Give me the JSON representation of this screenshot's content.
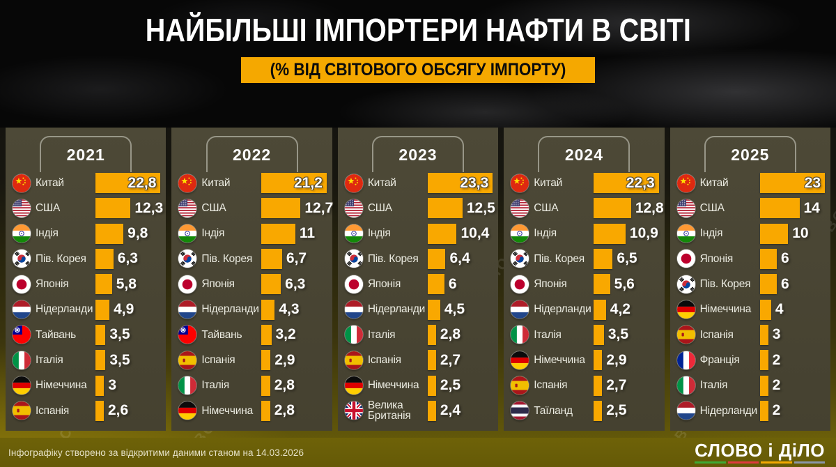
{
  "title": "НАЙБІЛЬШІ ІМПОРТЕРИ НАФТИ В СВІТІ",
  "subtitle": "(% ВІД СВІТОВОГО ОБСЯГУ ІМПОРТУ)",
  "watermark_text": "СЛОВО і ДіЛО",
  "footer": {
    "note": "Інфографіку створено за відкритими даними станом на 14.03.2026",
    "logo_text": "СЛОВО і ДіЛО",
    "logo_underline_colors": [
      "#3faa35",
      "#e03a3e",
      "#f2a900",
      "#8a97a8"
    ]
  },
  "colors": {
    "bar": "#F9A800",
    "badge_bg": "#F5A800",
    "panel_bg": "#4B4736"
  },
  "chart_data": {
    "type": "bar",
    "orientation": "horizontal",
    "title": "НАЙБІЛЬШІ ІМПОРТЕРИ НАФТИ В СВІТІ",
    "subtitle": "(% ВІД СВІТОВОГО ОБСЯГУ ІМПОРТУ)",
    "unit": "% від світового обсягу імпорту",
    "groups": [
      {
        "year": "2021",
        "rows": [
          {
            "country": "Китай",
            "flag": "cn",
            "value": 22.8,
            "label": "22,8"
          },
          {
            "country": "США",
            "flag": "us",
            "value": 12.3,
            "label": "12,3"
          },
          {
            "country": "Індія",
            "flag": "in",
            "value": 9.8,
            "label": "9,8"
          },
          {
            "country": "Пів. Корея",
            "flag": "kr",
            "value": 6.3,
            "label": "6,3"
          },
          {
            "country": "Японія",
            "flag": "jp",
            "value": 5.8,
            "label": "5,8"
          },
          {
            "country": "Нідерланди",
            "flag": "nl",
            "value": 4.9,
            "label": "4,9"
          },
          {
            "country": "Тайвань",
            "flag": "tw",
            "value": 3.5,
            "label": "3,5"
          },
          {
            "country": "Італія",
            "flag": "it",
            "value": 3.5,
            "label": "3,5"
          },
          {
            "country": "Німеччина",
            "flag": "de",
            "value": 3,
            "label": "3"
          },
          {
            "country": "Іспанія",
            "flag": "es",
            "value": 2.6,
            "label": "2,6"
          }
        ]
      },
      {
        "year": "2022",
        "rows": [
          {
            "country": "Китай",
            "flag": "cn",
            "value": 21.2,
            "label": "21,2"
          },
          {
            "country": "США",
            "flag": "us",
            "value": 12.7,
            "label": "12,7"
          },
          {
            "country": "Індія",
            "flag": "in",
            "value": 11,
            "label": "11"
          },
          {
            "country": "Пів. Корея",
            "flag": "kr",
            "value": 6.7,
            "label": "6,7"
          },
          {
            "country": "Японія",
            "flag": "jp",
            "value": 6.3,
            "label": "6,3"
          },
          {
            "country": "Нідерланди",
            "flag": "nl",
            "value": 4.3,
            "label": "4,3"
          },
          {
            "country": "Тайвань",
            "flag": "tw",
            "value": 3.2,
            "label": "3,2"
          },
          {
            "country": "Іспанія",
            "flag": "es",
            "value": 2.9,
            "label": "2,9"
          },
          {
            "country": "Італія",
            "flag": "it",
            "value": 2.8,
            "label": "2,8"
          },
          {
            "country": "Німеччина",
            "flag": "de",
            "value": 2.8,
            "label": "2,8"
          }
        ]
      },
      {
        "year": "2023",
        "rows": [
          {
            "country": "Китай",
            "flag": "cn",
            "value": 23.3,
            "label": "23,3"
          },
          {
            "country": "США",
            "flag": "us",
            "value": 12.5,
            "label": "12,5"
          },
          {
            "country": "Індія",
            "flag": "in",
            "value": 10.4,
            "label": "10,4"
          },
          {
            "country": "Пів. Корея",
            "flag": "kr",
            "value": 6.4,
            "label": "6,4"
          },
          {
            "country": "Японія",
            "flag": "jp",
            "value": 6,
            "label": "6"
          },
          {
            "country": "Нідерланди",
            "flag": "nl",
            "value": 4.5,
            "label": "4,5"
          },
          {
            "country": "Італія",
            "flag": "it",
            "value": 2.8,
            "label": "2,8"
          },
          {
            "country": "Іспанія",
            "flag": "es",
            "value": 2.7,
            "label": "2,7"
          },
          {
            "country": "Німеччина",
            "flag": "de",
            "value": 2.5,
            "label": "2,5"
          },
          {
            "country": "Велика Британія",
            "flag": "gb",
            "value": 2.4,
            "label": "2,4"
          }
        ]
      },
      {
        "year": "2024",
        "rows": [
          {
            "country": "Китай",
            "flag": "cn",
            "value": 22.3,
            "label": "22,3"
          },
          {
            "country": "США",
            "flag": "us",
            "value": 12.8,
            "label": "12,8"
          },
          {
            "country": "Індія",
            "flag": "in",
            "value": 10.9,
            "label": "10,9"
          },
          {
            "country": "Пів. Корея",
            "flag": "kr",
            "value": 6.5,
            "label": "6,5"
          },
          {
            "country": "Японія",
            "flag": "jp",
            "value": 5.6,
            "label": "5,6"
          },
          {
            "country": "Нідерланди",
            "flag": "nl",
            "value": 4.2,
            "label": "4,2"
          },
          {
            "country": "Італія",
            "flag": "it",
            "value": 3.5,
            "label": "3,5"
          },
          {
            "country": "Німеччина",
            "flag": "de",
            "value": 2.9,
            "label": "2,9"
          },
          {
            "country": "Іспанія",
            "flag": "es",
            "value": 2.7,
            "label": "2,7"
          },
          {
            "country": "Таїланд",
            "flag": "th",
            "value": 2.5,
            "label": "2,5"
          }
        ]
      },
      {
        "year": "2025",
        "rows": [
          {
            "country": "Китай",
            "flag": "cn",
            "value": 23,
            "label": "23"
          },
          {
            "country": "США",
            "flag": "us",
            "value": 14,
            "label": "14"
          },
          {
            "country": "Індія",
            "flag": "in",
            "value": 10,
            "label": "10"
          },
          {
            "country": "Японія",
            "flag": "jp",
            "value": 6,
            "label": "6"
          },
          {
            "country": "Пів. Корея",
            "flag": "kr",
            "value": 6,
            "label": "6"
          },
          {
            "country": "Німеччина",
            "flag": "de",
            "value": 4,
            "label": "4"
          },
          {
            "country": "Іспанія",
            "flag": "es",
            "value": 3,
            "label": "3"
          },
          {
            "country": "Франція",
            "flag": "fr",
            "value": 2,
            "label": "2"
          },
          {
            "country": "Італія",
            "flag": "it",
            "value": 2,
            "label": "2"
          },
          {
            "country": "Нідерланди",
            "flag": "nl",
            "value": 2,
            "label": "2"
          }
        ]
      }
    ]
  }
}
